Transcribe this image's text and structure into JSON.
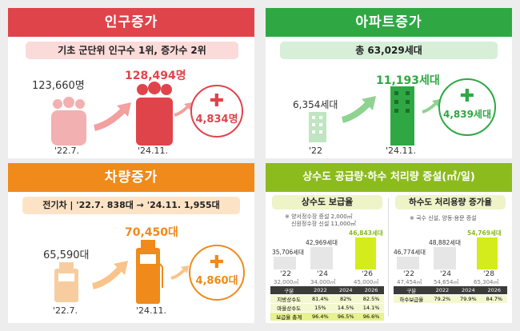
{
  "population": {
    "title": "인구증가",
    "subtitle": "기초 군단위 인구수 1위, 증가수 2위",
    "before_value": "123,660명",
    "before_label": "'22.7.",
    "after_value": "128,494명",
    "after_label": "'24.11.",
    "increase": "4,834명",
    "color": "#e0444b"
  },
  "apartment": {
    "title": "아파트증가",
    "subtitle": "총 63,029세대",
    "before_value": "6,354세대",
    "before_label": "'22",
    "after_value": "11,193세대",
    "after_label": "'24.11.",
    "increase": "4,839세대",
    "color": "#2fa843"
  },
  "vehicle": {
    "title": "차량증가",
    "subtitle": "전기차 | '22.7. 838대 → '24.11. 1,955대",
    "before_value": "65,590대",
    "before_label": "'22.7.",
    "after_value": "70,450대",
    "after_label": "'24.11.",
    "increase": "4,860대",
    "color": "#f08a1a"
  },
  "water": {
    "title": "상수도 공급량·하수 처리량 증설(㎥/일)",
    "color": "#8cbb1e",
    "supply": {
      "title": "상수도 보급율",
      "notes": [
        "※ 양서정수장 증설 2,000㎥",
        "신원정수장 신설 11,000㎥"
      ],
      "bars": [
        {
          "value": "35,706세대",
          "year": "'22",
          "cap": "32,000㎥"
        },
        {
          "value": "42,969세대",
          "year": "'24",
          "cap": "34,000㎥"
        },
        {
          "value": "46,843세대",
          "year": "'26",
          "cap": "45,000㎥"
        }
      ],
      "table": {
        "header": [
          "구분",
          "2022",
          "2024",
          "2026"
        ],
        "rows": [
          [
            "지방상수도",
            "81.4%",
            "82%",
            "82.5%"
          ],
          [
            "마을상수도",
            "15%",
            "14.5%",
            "14.1%"
          ],
          [
            "보급율 총계",
            "96.4%",
            "96.5%",
            "96.6%"
          ]
        ]
      }
    },
    "sewage": {
      "title": "하수도 처리용량 증가율",
      "notes": [
        "※ 국수 신설, 양동·용문 증설"
      ],
      "bars": [
        {
          "value": "46,774세대",
          "year": "'22",
          "cap": "47,454㎥"
        },
        {
          "value": "48,882세대",
          "year": "'24",
          "cap": "54,654㎥"
        },
        {
          "value": "54,769세대",
          "year": "'28",
          "cap": "65,304㎥"
        }
      ],
      "table": {
        "header": [
          "구분",
          "2022",
          "2024",
          "2026"
        ],
        "rows": [
          [
            "하수보급율",
            "79.2%",
            "79.9%",
            "84.7%"
          ]
        ]
      }
    }
  }
}
